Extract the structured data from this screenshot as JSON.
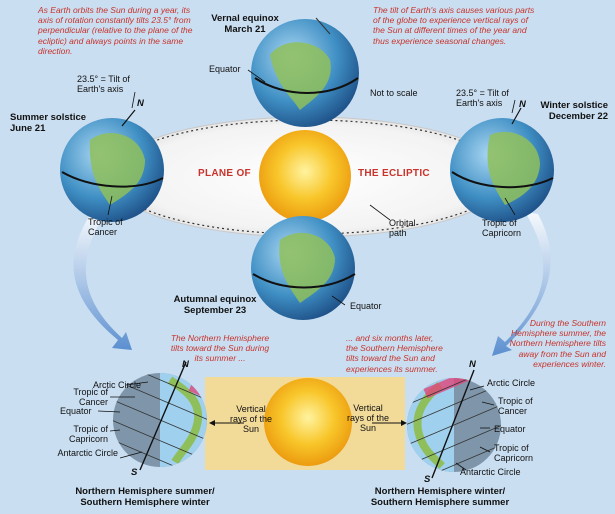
{
  "captions": {
    "top_left": "As Earth orbits the Sun during a year, its axis of rotation constantly tilts 23.5° from perpendicular (relative to the plane of the ecliptic) and always points in the same direction.",
    "top_right": "The tilt of Earth's axis causes various parts of the globe to experience vertical rays of the Sun at different times of the year and thus experience seasonal changes.",
    "mid_left": "The Northern Hemisphere tilts toward the Sun during its summer ...",
    "mid_center": "... and six months later, the Southern Hemisphere tilts toward the Sun and experiences its summer.",
    "mid_right": "During the Southern Hemisphere summer, the Northern Hemisphere tilts away from the Sun and experiences winter."
  },
  "orbit": {
    "vernal_title": "Vernal equinox",
    "vernal_date": "March 21",
    "summer_title": "Summer solstice",
    "summer_date": "June 21",
    "winter_title": "Winter solstice",
    "winter_date": "December 22",
    "autumnal_title": "Autumnal equinox",
    "autumnal_date": "September 23",
    "equator_top": "Equator",
    "equator_bottom": "Equator",
    "tilt_left": "23.5° = Tilt of Earth's axis",
    "tilt_right": "23.5° = Tilt of Earth's axis",
    "north_left": "N",
    "north_right": "N",
    "not_to_scale": "Not to scale",
    "plane_left": "PLANE OF",
    "plane_right": "THE ECLIPTIC",
    "tropic_cancer": "Tropic of Cancer",
    "tropic_capricorn": "Tropic of Capricorn",
    "orbital_path": "Orbital path"
  },
  "lower_left": {
    "arctic": "Arctic Circle",
    "cancer": "Tropic of Cancer",
    "equator": "Equator",
    "capricorn": "Tropic of Capricorn",
    "antarctic": "Antarctic Circle",
    "north": "N",
    "south": "S",
    "rays": "Vertical rays of the Sun",
    "caption": "Northern Hemisphere summer/ Southern Hemisphere winter"
  },
  "lower_right": {
    "arctic": "Arctic Circle",
    "cancer": "Tropic of Cancer",
    "equator": "Equator",
    "capricorn": "Tropic of Capricorn",
    "antarctic": "Antarctic Circle",
    "north": "N",
    "south": "S",
    "rays": "Vertical rays of the Sun",
    "caption": "Northern Hemisphere winter/ Southern Hemisphere summer"
  },
  "colors": {
    "background": "#c9def1",
    "caption_red": "#c8332b",
    "ocean": "#3f8fc4",
    "land": "#8fbf5a",
    "sun": "#f6b615",
    "rays_band": "#f9d98a",
    "plane": "#ffffff",
    "arrow": "#5b8fd0"
  }
}
